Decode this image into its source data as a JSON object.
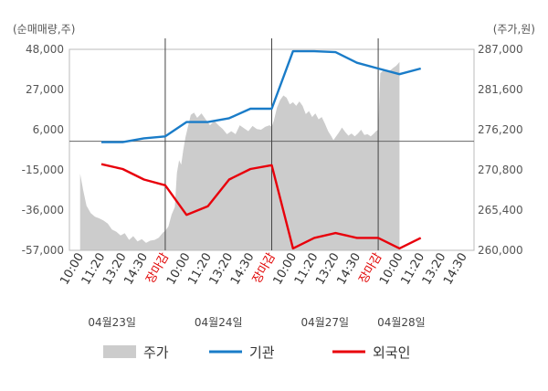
{
  "chart_data": {
    "type": "line",
    "left_axis_label": "(순매매량,주)",
    "right_axis_label": "(주가,원)",
    "left_ticks": [
      48000,
      27000,
      6000,
      -15000,
      -36000,
      -57000
    ],
    "left_tick_labels": [
      "48,000",
      "27,000",
      "6,000",
      "-15,000",
      "-36,000",
      "-57,000"
    ],
    "right_ticks": [
      287000,
      281600,
      276200,
      270800,
      265400,
      260000
    ],
    "right_tick_labels": [
      "287,000",
      "281,600",
      "276,200",
      "270,800",
      "265,400",
      "260,000"
    ],
    "left_ylim": [
      -57000,
      48000
    ],
    "right_ylim": [
      260000,
      287000
    ],
    "x_tick_labels": [
      "10:00",
      "11:20",
      "13:20",
      "14:30",
      "장마감",
      "10:00",
      "11:20",
      "13:20",
      "14:30",
      "장마감",
      "10:00",
      "11:20",
      "13:20",
      "14:30",
      "장마감",
      "10:00",
      "11:20",
      "13:20",
      "14:30"
    ],
    "close_label": "장마감",
    "dates": [
      "04월23일",
      "04월24일",
      "04월27일",
      "04월28일"
    ],
    "legend": [
      {
        "name": "주가",
        "color": "#cccccc",
        "kind": "area"
      },
      {
        "name": "기관",
        "color": "#1a7cc8",
        "kind": "line"
      },
      {
        "name": "외국인",
        "color": "#e8000b",
        "kind": "line"
      }
    ],
    "series": [
      {
        "name": "기관",
        "color": "#1a7cc8",
        "x": [
          1,
          2,
          3,
          4,
          5,
          6,
          7,
          8,
          9,
          10,
          11,
          12,
          13,
          14,
          15,
          16
        ],
        "values": [
          -500,
          -500,
          1500,
          2500,
          10000,
          10000,
          12000,
          17000,
          17000,
          47000,
          47000,
          46500,
          41000,
          38000,
          35000,
          38000
        ]
      },
      {
        "name": "외국인",
        "color": "#e8000b",
        "x": [
          1,
          2,
          3,
          4,
          5,
          6,
          7,
          8,
          9,
          10,
          11,
          12,
          13,
          14,
          15,
          16
        ],
        "values": [
          -12000,
          -14500,
          -20000,
          -23000,
          -38500,
          -34000,
          -20000,
          -14500,
          -12500,
          -56000,
          -50500,
          -48000,
          -50500,
          -50500,
          -56000,
          -50500
        ]
      },
      {
        "name": "주가",
        "color": "#cccccc",
        "kind": "area",
        "points": [
          [
            0.0,
            270300
          ],
          [
            0.15,
            268000
          ],
          [
            0.3,
            266000
          ],
          [
            0.5,
            265000
          ],
          [
            0.7,
            264500
          ],
          [
            0.9,
            264300
          ],
          [
            1.1,
            264000
          ],
          [
            1.3,
            263600
          ],
          [
            1.5,
            262800
          ],
          [
            1.7,
            262500
          ],
          [
            1.9,
            262000
          ],
          [
            2.1,
            262300
          ],
          [
            2.3,
            261400
          ],
          [
            2.5,
            261900
          ],
          [
            2.7,
            261200
          ],
          [
            2.9,
            261500
          ],
          [
            3.1,
            261000
          ],
          [
            3.3,
            261300
          ],
          [
            3.5,
            261400
          ],
          [
            3.7,
            261700
          ],
          [
            3.9,
            262400
          ],
          [
            4.0,
            262600
          ],
          [
            4.15,
            263200
          ],
          [
            4.3,
            264800
          ],
          [
            4.45,
            265800
          ],
          [
            4.55,
            270400
          ],
          [
            4.65,
            272100
          ],
          [
            4.75,
            271500
          ],
          [
            4.85,
            273500
          ],
          [
            4.95,
            275200
          ],
          [
            5.05,
            276400
          ],
          [
            5.2,
            278200
          ],
          [
            5.35,
            278500
          ],
          [
            5.5,
            277800
          ],
          [
            5.7,
            278400
          ],
          [
            5.9,
            277600
          ],
          [
            6.1,
            276800
          ],
          [
            6.3,
            277400
          ],
          [
            6.5,
            276800
          ],
          [
            6.7,
            276300
          ],
          [
            6.9,
            275600
          ],
          [
            7.1,
            276000
          ],
          [
            7.3,
            275600
          ],
          [
            7.5,
            276800
          ],
          [
            7.7,
            276400
          ],
          [
            7.9,
            276000
          ],
          [
            8.1,
            276700
          ],
          [
            8.3,
            276300
          ],
          [
            8.5,
            276200
          ],
          [
            8.7,
            276600
          ],
          [
            8.9,
            276800
          ],
          [
            9.0,
            276600
          ],
          [
            9.1,
            277400
          ],
          [
            9.25,
            279200
          ],
          [
            9.4,
            280200
          ],
          [
            9.55,
            280800
          ],
          [
            9.7,
            280500
          ],
          [
            9.85,
            279600
          ],
          [
            10.0,
            279900
          ],
          [
            10.15,
            279400
          ],
          [
            10.3,
            280000
          ],
          [
            10.45,
            279400
          ],
          [
            10.6,
            278300
          ],
          [
            10.75,
            278700
          ],
          [
            10.9,
            277900
          ],
          [
            11.05,
            278400
          ],
          [
            11.2,
            277600
          ],
          [
            11.35,
            277900
          ],
          [
            11.5,
            277000
          ],
          [
            11.65,
            276000
          ],
          [
            11.8,
            275300
          ],
          [
            11.9,
            274800
          ],
          [
            12.0,
            275200
          ],
          [
            12.15,
            275800
          ],
          [
            12.3,
            276500
          ],
          [
            12.45,
            275900
          ],
          [
            12.6,
            275400
          ],
          [
            12.75,
            275700
          ],
          [
            12.9,
            275300
          ],
          [
            13.05,
            275700
          ],
          [
            13.2,
            276200
          ],
          [
            13.35,
            275500
          ],
          [
            13.5,
            275600
          ],
          [
            13.65,
            275300
          ],
          [
            13.8,
            275700
          ],
          [
            13.9,
            276000
          ],
          [
            14.0,
            276200
          ],
          [
            14.1,
            283800
          ],
          [
            14.3,
            284300
          ],
          [
            14.5,
            284000
          ],
          [
            14.7,
            284500
          ],
          [
            14.85,
            284800
          ],
          [
            15.0,
            285300
          ]
        ]
      }
    ]
  }
}
